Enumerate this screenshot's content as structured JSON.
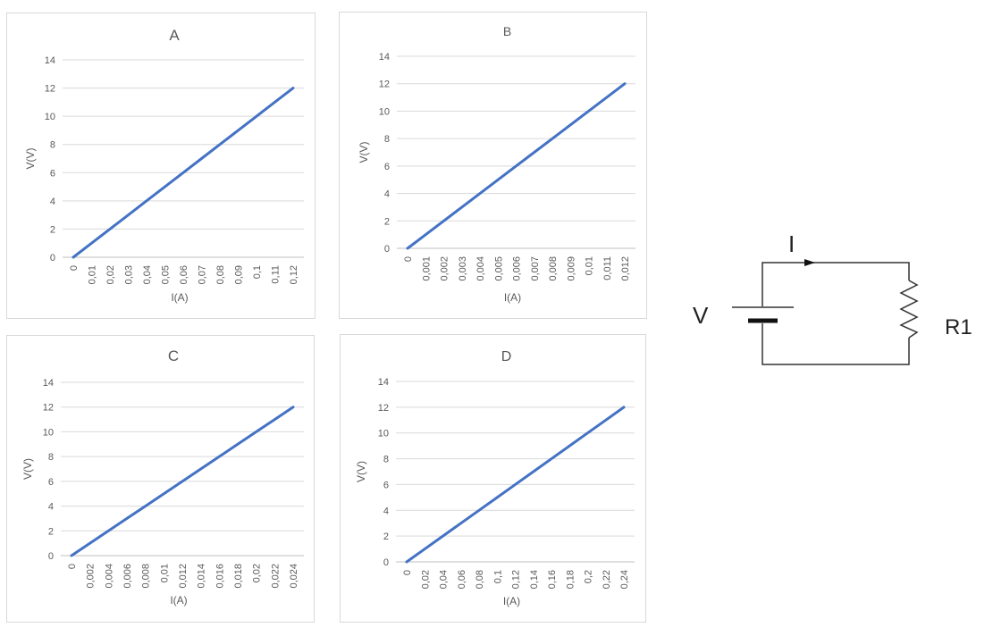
{
  "chart_data": [
    {
      "type": "line",
      "title": "A",
      "xlabel": "I(A)",
      "ylabel": "V(V)",
      "categories": [
        "0",
        "0,01",
        "0,02",
        "0,03",
        "0,04",
        "0,05",
        "0,06",
        "0,07",
        "0,08",
        "0,09",
        "0,1",
        "0,11",
        "0,12"
      ],
      "y_ticks": [
        "0",
        "2",
        "4",
        "6",
        "8",
        "10",
        "12",
        "14"
      ],
      "ylim": [
        0,
        14
      ],
      "values": [
        0,
        1,
        2,
        3,
        4,
        5,
        6,
        7,
        8,
        9,
        10,
        11,
        12
      ],
      "grid": true,
      "line_color": "#4472c4"
    },
    {
      "type": "line",
      "title": "B",
      "xlabel": "I(A)",
      "ylabel": "V(V)",
      "categories": [
        "0",
        "0,001",
        "0,002",
        "0,003",
        "0,004",
        "0,005",
        "0,006",
        "0,007",
        "0,008",
        "0,009",
        "0,01",
        "0,011",
        "0,012"
      ],
      "y_ticks": [
        "0",
        "2",
        "4",
        "6",
        "8",
        "10",
        "12",
        "14"
      ],
      "ylim": [
        0,
        14
      ],
      "values": [
        0,
        1,
        2,
        3,
        4,
        5,
        6,
        7,
        8,
        9,
        10,
        11,
        12
      ],
      "grid": true,
      "line_color": "#4472c4"
    },
    {
      "type": "line",
      "title": "C",
      "xlabel": "I(A)",
      "ylabel": "V(V)",
      "categories": [
        "0",
        "0,002",
        "0,004",
        "0,006",
        "0,008",
        "0,01",
        "0,012",
        "0,014",
        "0,016",
        "0,018",
        "0,02",
        "0,022",
        "0,024"
      ],
      "y_ticks": [
        "0",
        "2",
        "4",
        "6",
        "8",
        "10",
        "12",
        "14"
      ],
      "ylim": [
        0,
        14
      ],
      "values": [
        0,
        1,
        2,
        3,
        4,
        5,
        6,
        7,
        8,
        9,
        10,
        11,
        12
      ],
      "grid": true,
      "line_color": "#4472c4"
    },
    {
      "type": "line",
      "title": "D",
      "xlabel": "I(A)",
      "ylabel": "V(V)",
      "categories": [
        "0",
        "0,02",
        "0,04",
        "0,06",
        "0,08",
        "0,1",
        "0,12",
        "0,14",
        "0,16",
        "0,18",
        "0,2",
        "0,22",
        "0,24"
      ],
      "y_ticks": [
        "0",
        "2",
        "4",
        "6",
        "8",
        "10",
        "12",
        "14"
      ],
      "ylim": [
        0,
        14
      ],
      "values": [
        0,
        1,
        2,
        3,
        4,
        5,
        6,
        7,
        8,
        9,
        10,
        11,
        12
      ],
      "grid": true,
      "line_color": "#4472c4"
    }
  ],
  "circuit": {
    "voltage_label": "V",
    "current_label": "I",
    "resistor_label": "R1"
  }
}
